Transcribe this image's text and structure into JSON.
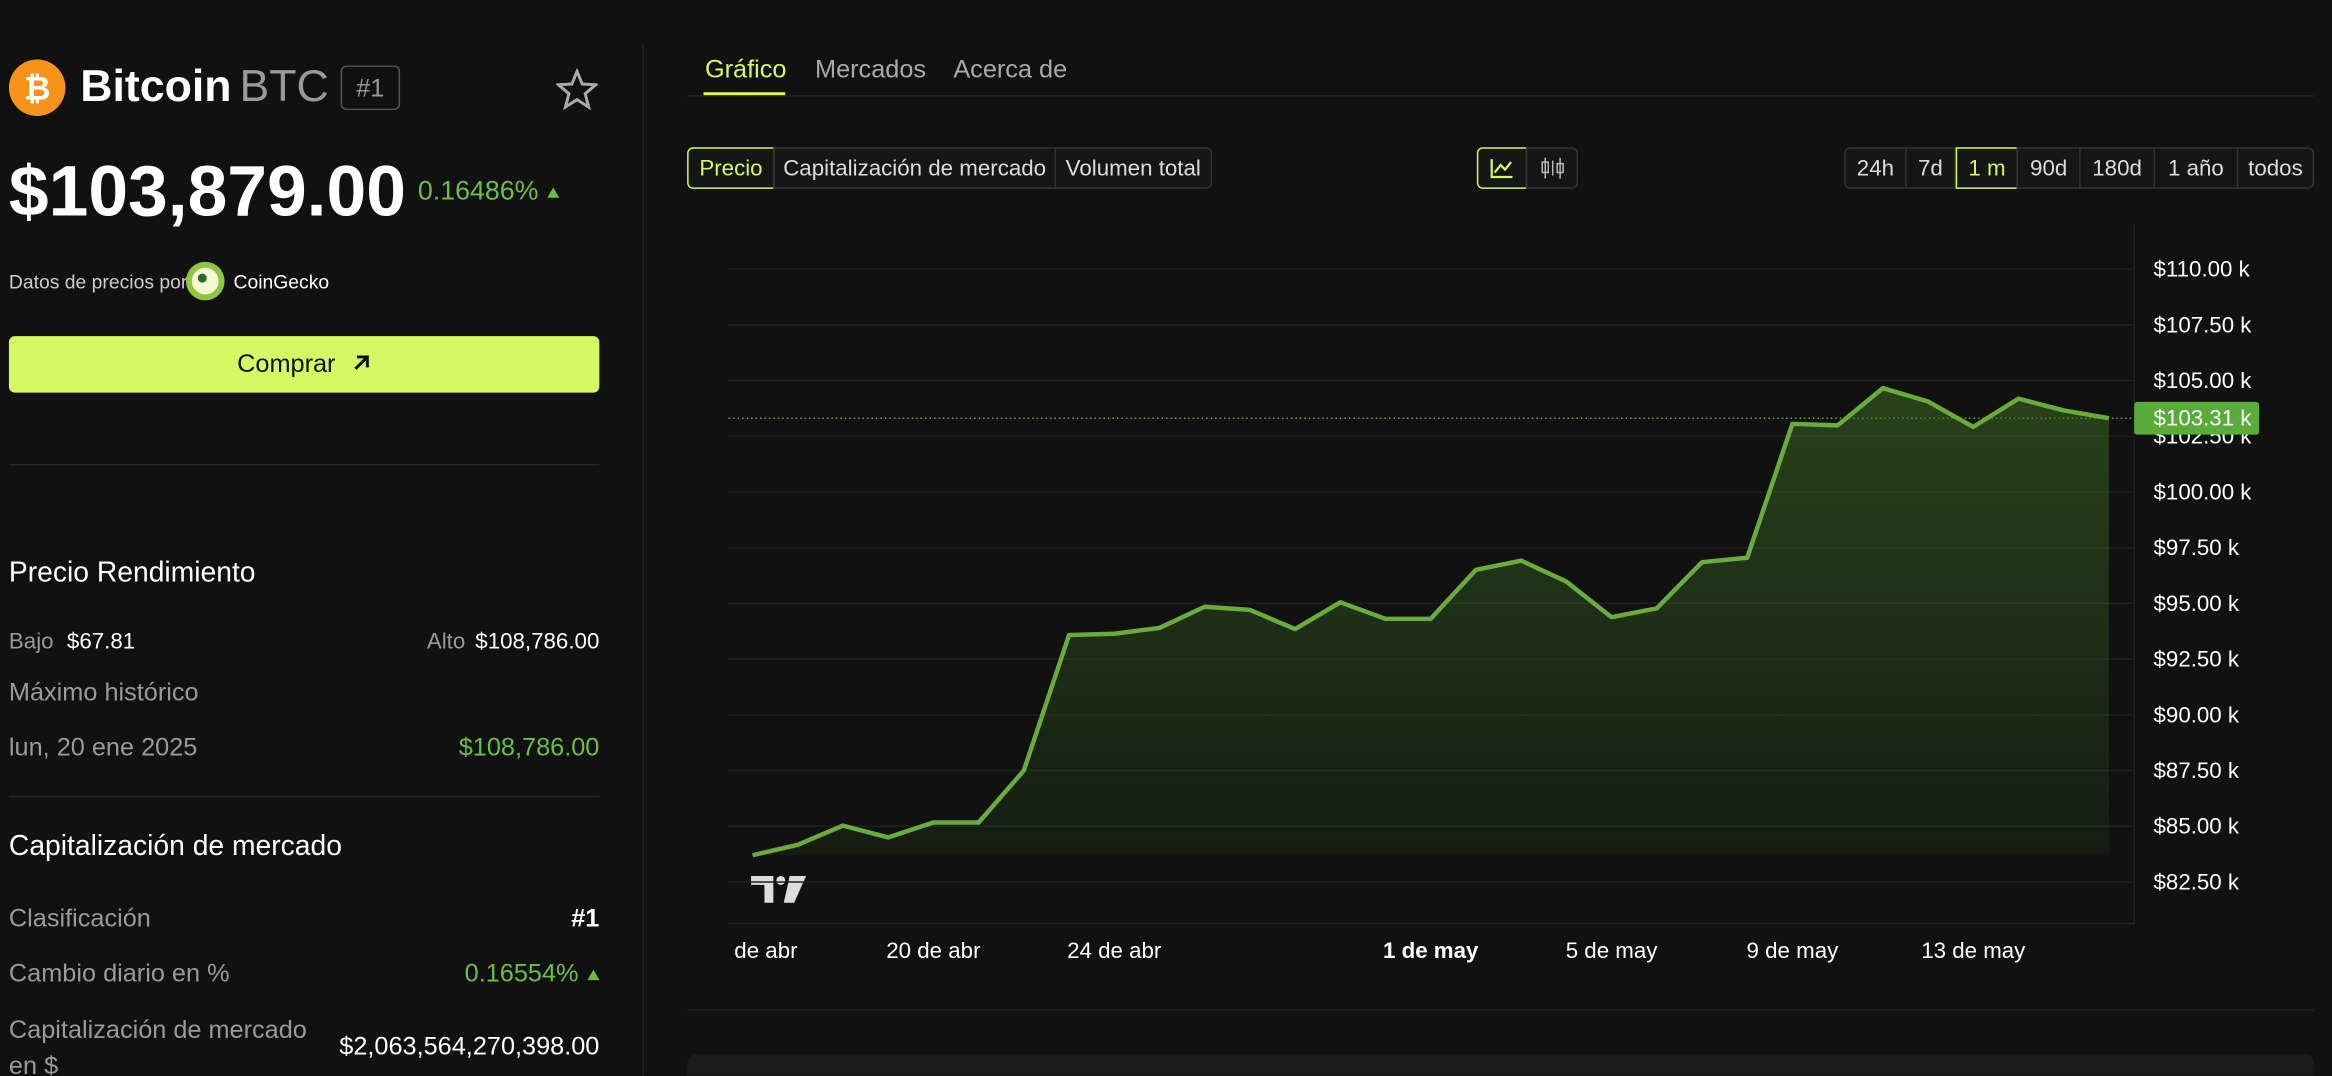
{
  "header": {
    "name": "Bitcoin",
    "symbol": "BTC",
    "rank": "#1",
    "price": "$103,879.00",
    "change": "0.16486%",
    "source_label": "Datos de precios por",
    "source": "CoinGecko",
    "buy": "Comprar"
  },
  "performance": {
    "title": "Precio Rendimiento",
    "low_label": "Bajo",
    "low": "$67.81",
    "high_label": "Alto",
    "high": "$108,786.00",
    "ath_label": "Máximo histórico",
    "ath_date": "lun, 20 ene 2025",
    "ath_value": "$108,786.00"
  },
  "market": {
    "title": "Capitalización de mercado",
    "rank_label": "Clasificación",
    "rank": "#1",
    "daily_label": "Cambio diario en %",
    "daily": "0.16554%",
    "cap_label": "Capitalización de mercado en $",
    "cap": "$2,063,564,270,398.00"
  },
  "tabs": [
    "Gráfico",
    "Mercados",
    "Acerca de"
  ],
  "metrics": [
    "Precio",
    "Capitalización de mercado",
    "Volumen total"
  ],
  "ranges": [
    "24h",
    "7d",
    "1 m",
    "90d",
    "180d",
    "1 año",
    "todos"
  ],
  "chart": {
    "type": "line",
    "color": "#6aab3e",
    "categories": [
      "de abr",
      null,
      null,
      null,
      "20 de abr",
      null,
      null,
      null,
      "24 de abr",
      null,
      null,
      null,
      null,
      null,
      null,
      "1 de may",
      null,
      null,
      null,
      "5 de may",
      null,
      null,
      null,
      "9 de may",
      null,
      null,
      null,
      "13 de may",
      null,
      null,
      null
    ],
    "values": [
      83.7,
      84.17,
      85.03,
      84.5,
      85.17,
      85.17,
      87.5,
      93.58,
      93.64,
      93.9,
      94.85,
      94.71,
      93.85,
      95.05,
      94.31,
      94.31,
      96.51,
      96.92,
      95.98,
      94.38,
      94.78,
      96.85,
      97.05,
      103.06,
      102.99,
      104.66,
      104.06,
      102.92,
      104.19,
      103.66,
      103.31
    ],
    "ylim": [
      80.5,
      112
    ],
    "yticks": [
      {
        "value": 82.5,
        "label": "$82.50 k"
      },
      {
        "value": 85,
        "label": "$85.00 k"
      },
      {
        "value": 87.5,
        "label": "$87.50 k"
      },
      {
        "value": 90,
        "label": "$90.00 k"
      },
      {
        "value": 92.5,
        "label": "$92.50 k"
      },
      {
        "value": 95,
        "label": "$95.00 k"
      },
      {
        "value": 97.5,
        "label": "$97.50 k"
      },
      {
        "value": 100,
        "label": "$100.00 k"
      },
      {
        "value": 102.5,
        "label": "$102.50 k"
      },
      {
        "value": 105,
        "label": "$105.00 k"
      },
      {
        "value": 107.5,
        "label": "$107.50 k"
      },
      {
        "value": 110,
        "label": "$110.00 k"
      }
    ],
    "current": {
      "value": 103.31,
      "label": "$103.31 k"
    },
    "grid": true
  }
}
